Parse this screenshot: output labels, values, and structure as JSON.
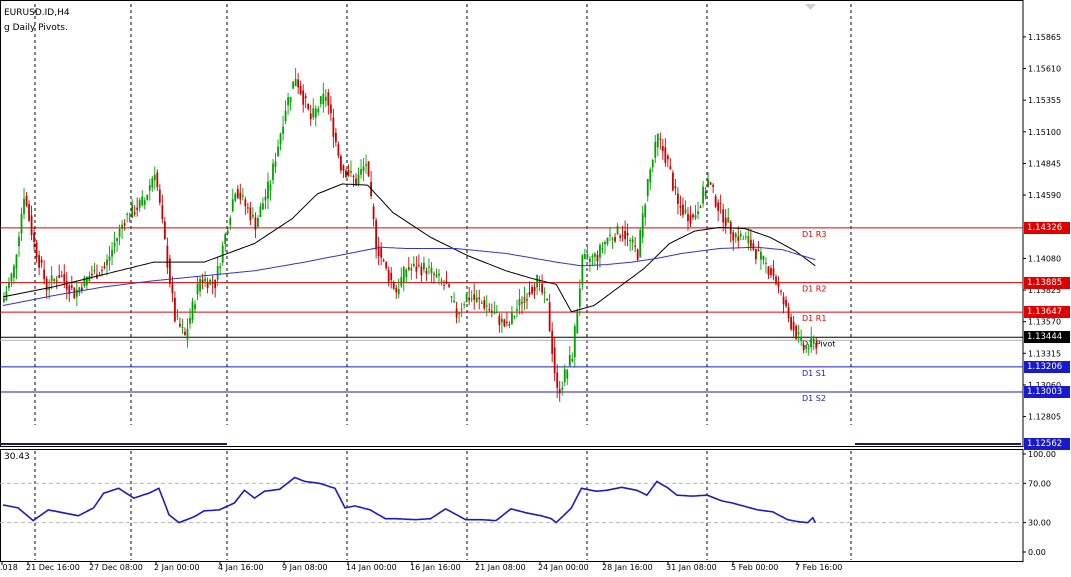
{
  "title": "EURUSD.ID,H4",
  "indicator_label": "g Daily Pivots.",
  "osc_value_label": "30.43",
  "colors": {
    "candle_up": "#00a000",
    "candle_down": "#cc0000",
    "ma_slow": "#3333cc",
    "ma_fast": "#000000",
    "resistance": "#e00000",
    "support": "#1a1acc",
    "pivot": "#000000",
    "oscillator": "#1a1acc"
  },
  "price_ticks": [
    "1.15865",
    "1.15610",
    "1.15355",
    "1.15100",
    "1.14845",
    "1.14590",
    "1.14080",
    "1.13825",
    "1.13570",
    "1.13315",
    "1.13060",
    "1.12805"
  ],
  "osc_ticks": [
    "100.00",
    "70.00",
    "30.00",
    "0.00"
  ],
  "time_labels": [
    ".018",
    "21 Dec 16:00",
    "27 Dec 08:00",
    "2 Jan 00:00",
    "4 Jan 16:00",
    "9 Jan 08:00",
    "14 Jan 00:00",
    "16 Jan 16:00",
    "21 Jan 08:00",
    "24 Jan 00:00",
    "28 Jan 16:00",
    "31 Jan 08:00",
    "5 Feb 00:00",
    "7 Feb 16:00"
  ],
  "pivot_levels": [
    {
      "label": "D1 R3",
      "price": 1.14326,
      "price_text": "1.14326",
      "kind": "resistance"
    },
    {
      "label": "D1 R2",
      "price": 1.13885,
      "price_text": "1.13885",
      "kind": "resistance"
    },
    {
      "label": "D1 R1",
      "price": 1.13647,
      "price_text": "1.13647",
      "kind": "resistance"
    },
    {
      "label": "D1 Pivot",
      "price": 1.13444,
      "price_text": "1.13444",
      "kind": "pivot"
    },
    {
      "label": "D1 S1",
      "price": 1.13206,
      "price_text": "1.13206",
      "kind": "support"
    },
    {
      "label": "D1 S2",
      "price": 1.13003,
      "price_text": "1.13003",
      "kind": "support"
    }
  ],
  "bottom_price_text": "1.12562",
  "chart_data": {
    "type": "candlestick",
    "symbol": "EURUSD.ID",
    "timeframe": "H4",
    "ylim": [
      1.1256,
      1.1613
    ],
    "osc_ylim": [
      0,
      100
    ],
    "series": [
      {
        "name": "EURUSD.ID,H4",
        "anchors": [
          [
            0,
            1.1376
          ],
          [
            4,
            1.14
          ],
          [
            8,
            1.146
          ],
          [
            12,
            1.142
          ],
          [
            17,
            1.1385
          ],
          [
            22,
            1.1395
          ],
          [
            28,
            1.138
          ],
          [
            34,
            1.1394
          ],
          [
            40,
            1.14
          ],
          [
            48,
            1.144
          ],
          [
            56,
            1.1455
          ],
          [
            60,
            1.148
          ],
          [
            64,
            1.142
          ],
          [
            68,
            1.136
          ],
          [
            72,
            1.1345
          ],
          [
            78,
            1.1392
          ],
          [
            84,
            1.1388
          ],
          [
            92,
            1.1465
          ],
          [
            100,
            1.1436
          ],
          [
            106,
            1.147
          ],
          [
            112,
            1.153
          ],
          [
            116,
            1.1555
          ],
          [
            122,
            1.152
          ],
          [
            128,
            1.154
          ],
          [
            134,
            1.1483
          ],
          [
            140,
            1.147
          ],
          [
            144,
            1.1485
          ],
          [
            148,
            1.142
          ],
          [
            152,
            1.1398
          ],
          [
            156,
            1.1382
          ],
          [
            160,
            1.14
          ],
          [
            168,
            1.14
          ],
          [
            176,
            1.1385
          ],
          [
            180,
            1.1363
          ],
          [
            184,
            1.1378
          ],
          [
            192,
            1.137
          ],
          [
            200,
            1.1352
          ],
          [
            206,
            1.1375
          ],
          [
            212,
            1.139
          ],
          [
            216,
            1.137
          ],
          [
            220,
            1.13
          ],
          [
            222,
            1.1308
          ],
          [
            226,
            1.1331
          ],
          [
            230,
            1.1405
          ],
          [
            236,
            1.141
          ],
          [
            240,
            1.1425
          ],
          [
            246,
            1.143
          ],
          [
            252,
            1.1412
          ],
          [
            256,
            1.147
          ],
          [
            260,
            1.1505
          ],
          [
            264,
            1.1485
          ],
          [
            268,
            1.145
          ],
          [
            274,
            1.144
          ],
          [
            280,
            1.147
          ],
          [
            284,
            1.145
          ],
          [
            290,
            1.1428
          ],
          [
            296,
            1.1422
          ],
          [
            300,
            1.141
          ],
          [
            306,
            1.1395
          ],
          [
            312,
            1.136
          ],
          [
            318,
            1.1335
          ],
          [
            322,
            1.134
          ]
        ]
      },
      {
        "name": "MA-fast",
        "anchors": [
          [
            0,
            1.1377
          ],
          [
            20,
            1.1385
          ],
          [
            40,
            1.1395
          ],
          [
            60,
            1.1405
          ],
          [
            80,
            1.1405
          ],
          [
            100,
            1.142
          ],
          [
            115,
            1.144
          ],
          [
            125,
            1.146
          ],
          [
            135,
            1.1468
          ],
          [
            145,
            1.1467
          ],
          [
            155,
            1.1445
          ],
          [
            170,
            1.1425
          ],
          [
            185,
            1.141
          ],
          [
            200,
            1.1398
          ],
          [
            210,
            1.1392
          ],
          [
            220,
            1.1387
          ],
          [
            226,
            1.1365
          ],
          [
            235,
            1.137
          ],
          [
            245,
            1.1385
          ],
          [
            255,
            1.14
          ],
          [
            265,
            1.142
          ],
          [
            275,
            1.143
          ],
          [
            285,
            1.1433
          ],
          [
            295,
            1.1432
          ],
          [
            305,
            1.1425
          ],
          [
            315,
            1.1414
          ],
          [
            323,
            1.1402
          ]
        ]
      },
      {
        "name": "MA-slow",
        "anchors": [
          [
            0,
            1.137
          ],
          [
            20,
            1.1378
          ],
          [
            40,
            1.1385
          ],
          [
            60,
            1.139
          ],
          [
            80,
            1.1394
          ],
          [
            100,
            1.1398
          ],
          [
            120,
            1.1405
          ],
          [
            140,
            1.1413
          ],
          [
            150,
            1.1417
          ],
          [
            160,
            1.1416
          ],
          [
            180,
            1.1416
          ],
          [
            200,
            1.1412
          ],
          [
            220,
            1.1405
          ],
          [
            230,
            1.1402
          ],
          [
            240,
            1.1403
          ],
          [
            250,
            1.1405
          ],
          [
            260,
            1.1408
          ],
          [
            270,
            1.1412
          ],
          [
            285,
            1.1416
          ],
          [
            300,
            1.1417
          ],
          [
            310,
            1.1415
          ],
          [
            318,
            1.141
          ],
          [
            323,
            1.1407
          ]
        ]
      },
      {
        "name": "Oscillator",
        "anchors": [
          [
            0,
            48
          ],
          [
            6,
            45
          ],
          [
            12,
            32
          ],
          [
            18,
            43
          ],
          [
            24,
            40
          ],
          [
            30,
            37
          ],
          [
            36,
            45
          ],
          [
            40,
            60
          ],
          [
            46,
            65
          ],
          [
            52,
            55
          ],
          [
            58,
            60
          ],
          [
            62,
            65
          ],
          [
            66,
            38
          ],
          [
            70,
            30
          ],
          [
            76,
            36
          ],
          [
            80,
            42
          ],
          [
            86,
            43
          ],
          [
            92,
            50
          ],
          [
            96,
            63
          ],
          [
            100,
            55
          ],
          [
            104,
            62
          ],
          [
            110,
            64
          ],
          [
            116,
            76
          ],
          [
            120,
            72
          ],
          [
            126,
            70
          ],
          [
            132,
            65
          ],
          [
            136,
            45
          ],
          [
            140,
            47
          ],
          [
            146,
            43
          ],
          [
            152,
            34
          ],
          [
            156,
            34
          ],
          [
            164,
            33
          ],
          [
            170,
            34
          ],
          [
            176,
            44
          ],
          [
            184,
            33
          ],
          [
            190,
            33
          ],
          [
            196,
            32
          ],
          [
            202,
            44
          ],
          [
            208,
            40
          ],
          [
            214,
            37
          ],
          [
            218,
            34
          ],
          [
            220,
            30
          ],
          [
            226,
            45
          ],
          [
            230,
            65
          ],
          [
            236,
            62
          ],
          [
            240,
            63
          ],
          [
            246,
            66
          ],
          [
            252,
            63
          ],
          [
            256,
            58
          ],
          [
            260,
            72
          ],
          [
            264,
            66
          ],
          [
            268,
            58
          ],
          [
            274,
            57
          ],
          [
            280,
            58
          ],
          [
            286,
            52
          ],
          [
            290,
            50
          ],
          [
            300,
            43
          ],
          [
            306,
            41
          ],
          [
            312,
            33
          ],
          [
            316,
            31
          ],
          [
            320,
            30
          ],
          [
            322,
            35
          ],
          [
            323,
            30
          ]
        ]
      }
    ]
  }
}
